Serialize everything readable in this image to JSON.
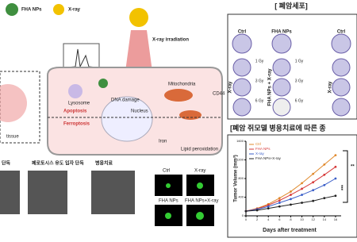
{
  "illustration": {
    "legend": [
      "FHA NPs",
      "X-ray"
    ],
    "irradiation": "X-ray irradiation",
    "labels": {
      "lysosome": "Lysosome",
      "apoptosis": "Apoptosis",
      "ferroptosis": "Ferroptosis",
      "dna": "DNA damage",
      "mito": "Mitochondria",
      "nucleus": "Nucleus",
      "iron": "Iron",
      "lipid": "Lipid peroxidation",
      "cd44": "CD44",
      "tissue": "tissue"
    }
  },
  "cells": {
    "title": "[ 폐암세포]",
    "cols": [
      "Ctrl",
      "FHA NPs",
      "Ctrl"
    ],
    "doses": [
      "1 Gy",
      "3 Gy",
      "6 Gy"
    ],
    "row_groups": [
      "X-ray",
      "FHA NPs + X-ray",
      "X-ray"
    ]
  },
  "bottom": {
    "captions": [
      "단독",
      "페로토시스 유도 입자 단독",
      "병용치료"
    ],
    "fluor": [
      "Ctrl",
      "X-ray",
      "FHA NPs",
      "FHA NPs+X-ray"
    ]
  },
  "chart_panel_title": "[폐암 쥐모델 병용치료에 따른 종",
  "chart_data": {
    "type": "line",
    "y_label": "Tumor Volume (mm³)",
    "x_label": "Days after treatment",
    "x": [
      0,
      2,
      4,
      6,
      8,
      10,
      12,
      14,
      16
    ],
    "xlim": [
      0,
      17
    ],
    "xticks": [
      0,
      2,
      4,
      6,
      8,
      10,
      12,
      14,
      16
    ],
    "ylim": [
      0,
      1600
    ],
    "yticks": [
      0,
      400,
      800,
      1200,
      1600
    ],
    "series": [
      {
        "name": "Ctrl",
        "color": "#e0892c",
        "values": [
          100,
          160,
          250,
          380,
          520,
          700,
          900,
          1100,
          1300
        ]
      },
      {
        "name": "FHA  NPs",
        "color": "#d63a3a",
        "values": [
          100,
          150,
          230,
          330,
          450,
          580,
          720,
          880,
          1050
        ]
      },
      {
        "name": "X-ray",
        "color": "#3a5ec8",
        "values": [
          100,
          140,
          200,
          280,
          360,
          450,
          550,
          660,
          800
        ]
      },
      {
        "name": "FHA NPs+X-ray",
        "color": "#222222",
        "values": [
          100,
          120,
          160,
          200,
          240,
          280,
          320,
          380,
          430
        ]
      }
    ],
    "annotations": [
      "**",
      "***"
    ]
  }
}
